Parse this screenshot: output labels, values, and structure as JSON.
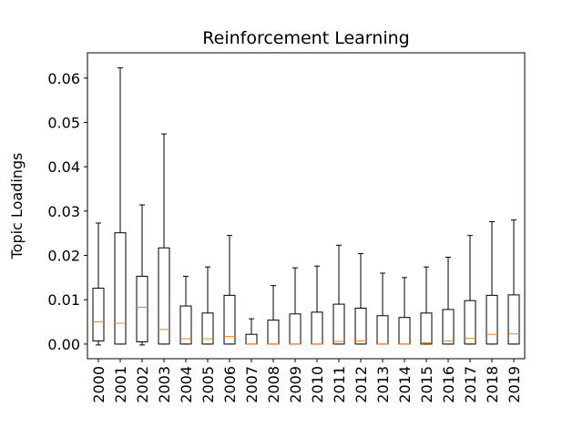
{
  "chart_data": {
    "type": "boxplot",
    "title": "Reinforcement Learning",
    "xlabel": "",
    "ylabel": "Topic Loadings",
    "ylim": [
      -0.0033,
      0.0657
    ],
    "yticks": [
      0.0,
      0.01,
      0.02,
      0.03,
      0.04,
      0.05,
      0.06
    ],
    "ytick_labels": [
      "0.00",
      "0.01",
      "0.02",
      "0.03",
      "0.04",
      "0.05",
      "0.06"
    ],
    "grid": false,
    "categories": [
      "2000",
      "2001",
      "2002",
      "2003",
      "2004",
      "2005",
      "2006",
      "2007",
      "2008",
      "2009",
      "2010",
      "2011",
      "2012",
      "2013",
      "2014",
      "2015",
      "2016",
      "2017",
      "2018",
      "2019"
    ],
    "boxes": [
      {
        "whislo": -0.0002,
        "q1": 0.0007,
        "med": 0.005,
        "q3": 0.0126,
        "whishi": 0.0273
      },
      {
        "whislo": 0.0,
        "q1": 0.0,
        "med": 0.0047,
        "q3": 0.0251,
        "whishi": 0.0623
      },
      {
        "whislo": -0.0002,
        "q1": 0.0005,
        "med": 0.0083,
        "q3": 0.0153,
        "whishi": 0.0314
      },
      {
        "whislo": 0.0,
        "q1": 0.0,
        "med": 0.0033,
        "q3": 0.0217,
        "whishi": 0.0474
      },
      {
        "whislo": 0.0,
        "q1": 0.0,
        "med": 0.0012,
        "q3": 0.0086,
        "whishi": 0.0153
      },
      {
        "whislo": 0.0,
        "q1": 0.0,
        "med": 0.0012,
        "q3": 0.007,
        "whishi": 0.0174
      },
      {
        "whislo": 0.0,
        "q1": 0.0,
        "med": 0.0017,
        "q3": 0.011,
        "whishi": 0.0245
      },
      {
        "whislo": 0.0,
        "q1": 0.0,
        "med": 0.0,
        "q3": 0.0022,
        "whishi": 0.0057
      },
      {
        "whislo": 0.0,
        "q1": 0.0,
        "med": 0.0,
        "q3": 0.0054,
        "whishi": 0.0132
      },
      {
        "whislo": 0.0,
        "q1": 0.0,
        "med": 0.0,
        "q3": 0.0068,
        "whishi": 0.0172
      },
      {
        "whislo": 0.0,
        "q1": 0.0,
        "med": 0.0,
        "q3": 0.0072,
        "whishi": 0.0176
      },
      {
        "whislo": 0.0,
        "q1": 0.0,
        "med": 0.0006,
        "q3": 0.009,
        "whishi": 0.0223
      },
      {
        "whislo": 0.0,
        "q1": 0.0,
        "med": 0.0007,
        "q3": 0.0081,
        "whishi": 0.0204
      },
      {
        "whislo": 0.0,
        "q1": 0.0,
        "med": 0.0,
        "q3": 0.0064,
        "whishi": 0.016
      },
      {
        "whislo": 0.0,
        "q1": 0.0,
        "med": 0.0,
        "q3": 0.006,
        "whishi": 0.015
      },
      {
        "whislo": 0.0,
        "q1": 0.0,
        "med": 0.0003,
        "q3": 0.007,
        "whishi": 0.0174
      },
      {
        "whislo": 0.0,
        "q1": 0.0,
        "med": 0.0007,
        "q3": 0.0078,
        "whishi": 0.0196
      },
      {
        "whislo": 0.0,
        "q1": 0.0,
        "med": 0.0013,
        "q3": 0.0098,
        "whishi": 0.0245
      },
      {
        "whislo": 0.0,
        "q1": 0.0,
        "med": 0.0022,
        "q3": 0.011,
        "whishi": 0.0276
      },
      {
        "whislo": 0.0,
        "q1": 0.0,
        "med": 0.0023,
        "q3": 0.0111,
        "whishi": 0.028
      }
    ],
    "colors": {
      "box": "#000000",
      "median": "#ff7f0e",
      "whisker": "#000000",
      "axes": "#000000",
      "background": "#ffffff"
    }
  }
}
